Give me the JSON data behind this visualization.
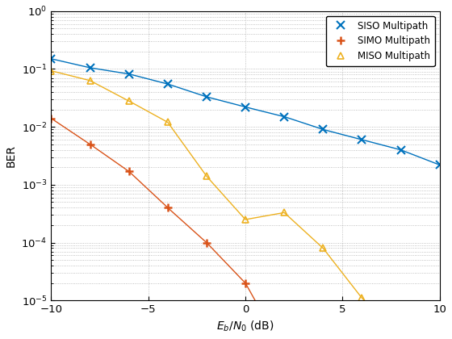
{
  "title": "",
  "xlabel": "$E_b/N_0$ (dB)",
  "ylabel": "BER",
  "xlim": [
    -10,
    10
  ],
  "ylim": [
    1e-05,
    1
  ],
  "siso": {
    "x": [
      -10,
      -8,
      -6,
      -4,
      -2,
      0,
      2,
      4,
      6,
      8,
      10
    ],
    "y": [
      0.15,
      0.105,
      0.082,
      0.055,
      0.033,
      0.022,
      0.015,
      0.009,
      0.006,
      0.004,
      0.0022
    ],
    "color": "#0072BD",
    "marker": "x",
    "label": "SISO Multipath",
    "linewidth": 1.0,
    "markersize": 7
  },
  "simo": {
    "x": [
      -10,
      -8,
      -6,
      -4,
      -2,
      0,
      1
    ],
    "y": [
      0.014,
      0.005,
      0.0017,
      0.0004,
      0.0001,
      2e-05,
      5e-06
    ],
    "color": "#D95319",
    "marker": "+",
    "label": "SIMO Multipath",
    "linewidth": 1.0,
    "markersize": 7
  },
  "miso": {
    "x": [
      -10,
      -8,
      -6,
      -4,
      -2,
      0,
      2,
      4,
      6,
      7
    ],
    "y": [
      0.093,
      0.063,
      0.028,
      0.012,
      0.0014,
      0.00025,
      0.00033,
      8e-05,
      1.1e-05,
      5e-06
    ],
    "color": "#EDB120",
    "marker": "^",
    "label": "MISO Multipath",
    "linewidth": 1.0,
    "markersize": 6
  },
  "background_color": "#ffffff",
  "legend_loc": "upper right",
  "grid_color": "#b0b0b0",
  "grid_style": ":"
}
